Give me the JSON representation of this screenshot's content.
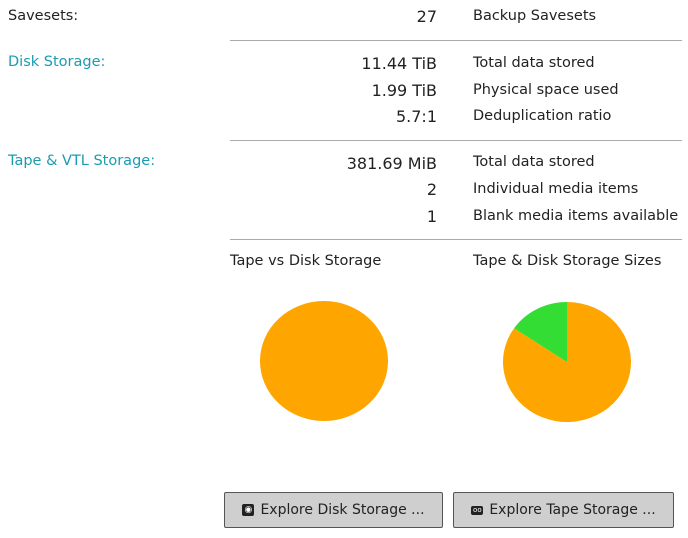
{
  "savesets": {
    "label": "Savesets:",
    "value": "27",
    "desc": "Backup Savesets"
  },
  "disk": {
    "label": "Disk Storage:",
    "rows": [
      {
        "value": "11.44 TiB",
        "desc": "Total data stored"
      },
      {
        "value": "1.99 TiB",
        "desc": "Physical space used"
      },
      {
        "value": "5.7:1",
        "desc": "Deduplication ratio"
      }
    ]
  },
  "tape": {
    "label": "Tape & VTL Storage:",
    "rows": [
      {
        "value": "381.69 MiB",
        "desc": "Total data stored"
      },
      {
        "value": "2",
        "desc": "Individual media items"
      },
      {
        "value": "1",
        "desc": "Blank media items available"
      }
    ]
  },
  "chart_data": [
    {
      "type": "pie",
      "title": "Tape vs Disk Storage",
      "slices": [
        {
          "share": 100,
          "color": "#ffa500"
        }
      ]
    },
    {
      "type": "pie",
      "title": "Tape & Disk Storage Sizes",
      "slices": [
        {
          "share": 84.5,
          "color": "#ffa500"
        },
        {
          "share": 15.5,
          "color": "#33dd33"
        }
      ]
    }
  ],
  "buttons": {
    "disk": {
      "label": "Explore Disk Storage ...",
      "icon": "disk-icon"
    },
    "tape": {
      "label": "Explore Tape Storage ...",
      "icon": "tape-icon"
    }
  }
}
